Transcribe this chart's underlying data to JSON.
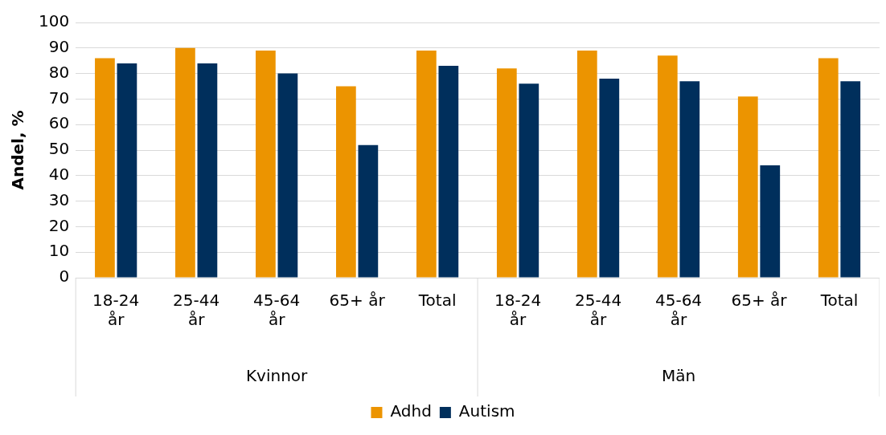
{
  "chart_data": {
    "type": "bar",
    "ylabel": "Andel, %",
    "categories": [
      "18-24 år",
      "25-44 år",
      "45-64 år",
      "65+ år",
      "Total",
      "18-24 år",
      "25-44 år",
      "45-64 år",
      "65+ år",
      "Total"
    ],
    "annotations": [
      "Kvinnor",
      "Män"
    ],
    "series": [
      {
        "name": "Adhd",
        "color": "#ec9400",
        "values": [
          86,
          90,
          89,
          75,
          89,
          82,
          89,
          87,
          71,
          86
        ]
      },
      {
        "name": "Autism",
        "color": "#002f5c",
        "values": [
          84,
          84,
          80,
          52,
          83,
          76,
          78,
          77,
          44,
          77
        ]
      }
    ],
    "ylim": [
      0,
      100
    ],
    "yticks": [
      0,
      10,
      20,
      30,
      40,
      50,
      60,
      70,
      80,
      90,
      100
    ],
    "grid": "y",
    "legend": "bottom"
  }
}
